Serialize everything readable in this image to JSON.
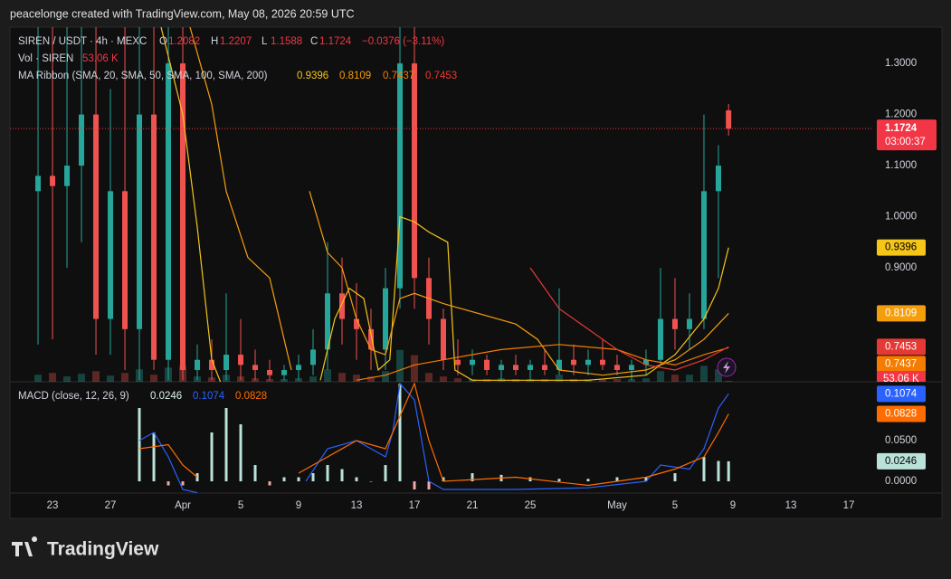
{
  "header": {
    "credit": "peacelonge created with TradingView.com, May 08, 2026 20:59 UTC"
  },
  "footer": {
    "brand": "TradingView"
  },
  "chart_data": [
    {
      "type": "candlestick",
      "symbol": "SIREN / USDT · 4h · MEXC",
      "ohlc_letters": [
        "O",
        "H",
        "L",
        "C"
      ],
      "change": {
        "value": -0.0376,
        "label": "−0.0376 (−3.11%)"
      },
      "countdown": "03:00:37",
      "up_color": "#26a69a",
      "down_color": "#ef5350",
      "xlim": [
        20.06,
        79.69
      ],
      "ylim": [
        0.677,
        1.371
      ],
      "yticks": [
        {
          "value": 1.3,
          "label": "1.3000"
        },
        {
          "value": 1.2,
          "label": "1.2000"
        },
        {
          "value": 1.1,
          "label": "1.1000"
        },
        {
          "value": 1.0,
          "label": "1.0000"
        },
        {
          "value": 0.9,
          "label": "0.9000"
        }
      ],
      "x": [
        22,
        23,
        24,
        25,
        26,
        27,
        28,
        29,
        30,
        31,
        32,
        33,
        34,
        35,
        36,
        37,
        38,
        39,
        40,
        41,
        42,
        43,
        44,
        45,
        46,
        47,
        48,
        49,
        50,
        51,
        52,
        53,
        54,
        55,
        56,
        57,
        58,
        59,
        60,
        61,
        62,
        63,
        64,
        65,
        66,
        67,
        68,
        69,
        69.7
      ],
      "open": [
        1.05,
        1.08,
        1.06,
        1.1,
        1.2,
        0.8,
        1.05,
        0.78,
        1.2,
        0.72,
        1.3,
        0.7,
        0.72,
        0.7,
        0.73,
        0.71,
        0.7,
        0.69,
        0.7,
        0.71,
        0.74,
        0.85,
        0.8,
        0.78,
        0.74,
        0.86,
        1.3,
        0.88,
        0.8,
        0.72,
        0.71,
        0.72,
        0.7,
        0.71,
        0.7,
        0.71,
        0.7,
        0.72,
        0.71,
        0.72,
        0.71,
        0.7,
        0.71,
        0.72,
        0.8,
        0.78,
        0.8,
        1.05,
        1.2082
      ],
      "high": [
        1.371,
        1.371,
        1.371,
        1.371,
        1.371,
        1.25,
        1.371,
        1.371,
        1.371,
        1.371,
        1.371,
        0.75,
        0.76,
        0.85,
        0.8,
        0.74,
        0.72,
        0.71,
        0.73,
        0.78,
        0.95,
        0.92,
        0.87,
        0.82,
        0.9,
        1.371,
        1.371,
        0.92,
        0.82,
        0.76,
        0.74,
        0.73,
        0.72,
        0.73,
        0.72,
        0.74,
        0.86,
        0.75,
        0.74,
        0.76,
        0.73,
        0.72,
        0.74,
        0.9,
        0.88,
        0.85,
        1.2,
        1.14,
        1.2207
      ],
      "low": [
        0.75,
        0.76,
        0.9,
        0.95,
        0.73,
        0.73,
        0.7,
        0.68,
        0.7,
        0.68,
        0.68,
        0.68,
        0.68,
        0.68,
        0.68,
        0.68,
        0.68,
        0.68,
        0.68,
        0.69,
        0.7,
        0.75,
        0.72,
        0.7,
        0.7,
        0.82,
        0.82,
        0.75,
        0.7,
        0.69,
        0.69,
        0.69,
        0.68,
        0.69,
        0.68,
        0.69,
        0.69,
        0.69,
        0.69,
        0.7,
        0.69,
        0.68,
        0.69,
        0.71,
        0.74,
        0.74,
        0.78,
        0.88,
        1.1588
      ],
      "close": [
        1.08,
        1.06,
        1.1,
        1.2,
        0.8,
        1.05,
        0.78,
        1.2,
        0.72,
        1.3,
        0.7,
        0.72,
        0.7,
        0.73,
        0.71,
        0.7,
        0.69,
        0.7,
        0.71,
        0.74,
        0.85,
        0.8,
        0.78,
        0.74,
        0.86,
        1.3,
        0.88,
        0.8,
        0.72,
        0.71,
        0.72,
        0.7,
        0.71,
        0.7,
        0.71,
        0.7,
        0.72,
        0.71,
        0.72,
        0.71,
        0.7,
        0.71,
        0.72,
        0.8,
        0.78,
        0.8,
        1.05,
        1.1,
        1.1724
      ],
      "volume": {
        "name": "Vol · SIREN",
        "vlim": [
          0,
          20000
        ],
        "last_label": "53.06 K",
        "values": [
          400,
          500,
          300,
          450,
          600,
          350,
          500,
          700,
          400,
          800,
          900,
          300,
          250,
          400,
          300,
          200,
          150,
          150,
          200,
          300,
          700,
          500,
          400,
          300,
          600,
          1800,
          1500,
          500,
          300,
          200,
          150,
          150,
          200,
          150,
          150,
          150,
          400,
          150,
          150,
          150,
          150,
          150,
          200,
          600,
          400,
          400,
          900,
          700,
          53.06
        ]
      },
      "ma": {
        "name": "MA Ribbon (SMA, 20, SMA, 50, SMA, 100, SMA, 200)",
        "series": [
          {
            "color": "#f5c518",
            "x": [
              30.5,
              32,
              33,
              34,
              34.6,
              38,
              41.5,
              42.5,
              43.5,
              44.5,
              45.5,
              46.3,
              47,
              48,
              49,
              50.3,
              50.8,
              52,
              56,
              60,
              64,
              66,
              68,
              69,
              69.7
            ],
            "values": [
              1.371,
              1.2,
              0.98,
              0.72,
              0.677,
              null,
              0.68,
              0.8,
              0.86,
              0.84,
              0.7,
              0.72,
              1.0,
              0.99,
              0.97,
              0.95,
              0.7,
              0.68,
              0.68,
              0.68,
              0.69,
              0.73,
              0.8,
              0.86,
              0.9396
            ]
          },
          {
            "color": "#f59e0b",
            "x": [
              32.5,
              34,
              35,
              36.5,
              38,
              39.5,
              40.2,
              40.75,
              42,
              43,
              44,
              45,
              46,
              47,
              48,
              50,
              55,
              56.5,
              58,
              61,
              64,
              66,
              68,
              69.7
            ],
            "values": [
              1.371,
              1.22,
              1.05,
              0.92,
              0.88,
              0.7,
              null,
              1.05,
              0.93,
              0.9,
              0.8,
              0.74,
              0.73,
              0.84,
              0.85,
              0.83,
              0.79,
              0.76,
              0.7,
              0.69,
              0.7,
              0.72,
              0.76,
              0.8109
            ]
          },
          {
            "color": "#f57c00",
            "x": [
              44,
              46,
              48,
              50,
              54,
              58,
              62,
              64,
              66,
              68,
              69.7
            ],
            "values": [
              0.68,
              0.69,
              0.71,
              0.72,
              0.74,
              0.75,
              0.74,
              0.72,
              0.71,
              0.73,
              0.7437
            ]
          },
          {
            "color": "#e53935",
            "x": [
              56,
              58,
              60,
              62,
              64,
              66,
              68,
              69.7
            ],
            "values": [
              0.9,
              0.82,
              0.78,
              0.74,
              0.71,
              0.7,
              0.72,
              0.7453
            ]
          }
        ]
      }
    },
    {
      "type": "macd",
      "title": "MACD (close, 12, 26, 9)",
      "xlim": [
        20.06,
        79.69
      ],
      "ylim": [
        -0.0144,
        0.1222
      ],
      "yticks": [
        {
          "value": 0.05,
          "label": "0.0500"
        },
        {
          "value": 0,
          "label": "0.0000"
        }
      ],
      "xticks": [
        23,
        27,
        {
          "value": 32,
          "label": "Apr"
        },
        {
          "value": 36,
          "label": "5"
        },
        {
          "value": 40,
          "label": "9"
        },
        {
          "value": 44,
          "label": "13"
        },
        {
          "value": 48,
          "label": "17"
        },
        {
          "value": 52,
          "label": "21"
        },
        {
          "value": 56,
          "label": "25"
        },
        {
          "value": 62,
          "label": "May"
        },
        {
          "value": 66,
          "label": "5"
        },
        {
          "value": 70,
          "label": "9"
        },
        {
          "value": 74,
          "label": "13"
        },
        {
          "value": 78,
          "label": "17"
        }
      ],
      "histogram": {
        "color": "#b9e3d9",
        "negative_color": "#f4a6a6",
        "x": [
          29,
          30,
          31,
          32,
          33,
          34,
          35,
          36,
          37,
          38,
          39,
          40,
          41,
          42,
          43,
          44,
          45,
          46,
          47,
          48,
          49,
          50,
          52,
          54,
          56,
          58,
          60,
          62,
          64,
          66,
          68,
          69,
          69.7
        ],
        "values": [
          0.09,
          0.06,
          -0.005,
          -0.005,
          0.01,
          0.06,
          0.09,
          0.07,
          0.02,
          -0.005,
          0.005,
          0.005,
          0.01,
          0.02,
          0.015,
          0.005,
          0.0,
          0.02,
          0.12,
          -0.01,
          -0.01,
          0.005,
          0.01,
          0.008,
          0.005,
          0.003,
          0.003,
          0.005,
          0.005,
          0.01,
          0.03,
          0.025,
          0.0246
        ]
      },
      "macd": {
        "color": "#2962ff",
        "x": [
          29,
          30,
          31,
          32,
          33,
          37,
          40.5,
          42,
          44,
          46,
          46.5,
          47,
          48,
          49,
          50,
          55,
          60,
          64,
          65,
          67,
          68,
          69,
          69.7
        ],
        "values": [
          0.05,
          0.06,
          0.03,
          -0.01,
          -0.014,
          null,
          0.0,
          0.04,
          0.05,
          0.03,
          0.06,
          0.12,
          0.1,
          0.0,
          -0.01,
          -0.01,
          -0.008,
          0.0,
          0.02,
          0.015,
          0.04,
          0.09,
          0.1074
        ]
      },
      "signal": {
        "color": "#ff6d00",
        "x": [
          29,
          31,
          32,
          33,
          37,
          40,
          42,
          44,
          46,
          47,
          48,
          49,
          50,
          55,
          60,
          64,
          66,
          68,
          69,
          69.7
        ],
        "values": [
          0.04,
          0.045,
          0.02,
          0.005,
          null,
          0.01,
          0.03,
          0.05,
          0.04,
          0.08,
          0.12,
          0.05,
          0.0,
          0.005,
          -0.005,
          0.005,
          0.015,
          0.03,
          0.06,
          0.0828
        ]
      }
    }
  ]
}
